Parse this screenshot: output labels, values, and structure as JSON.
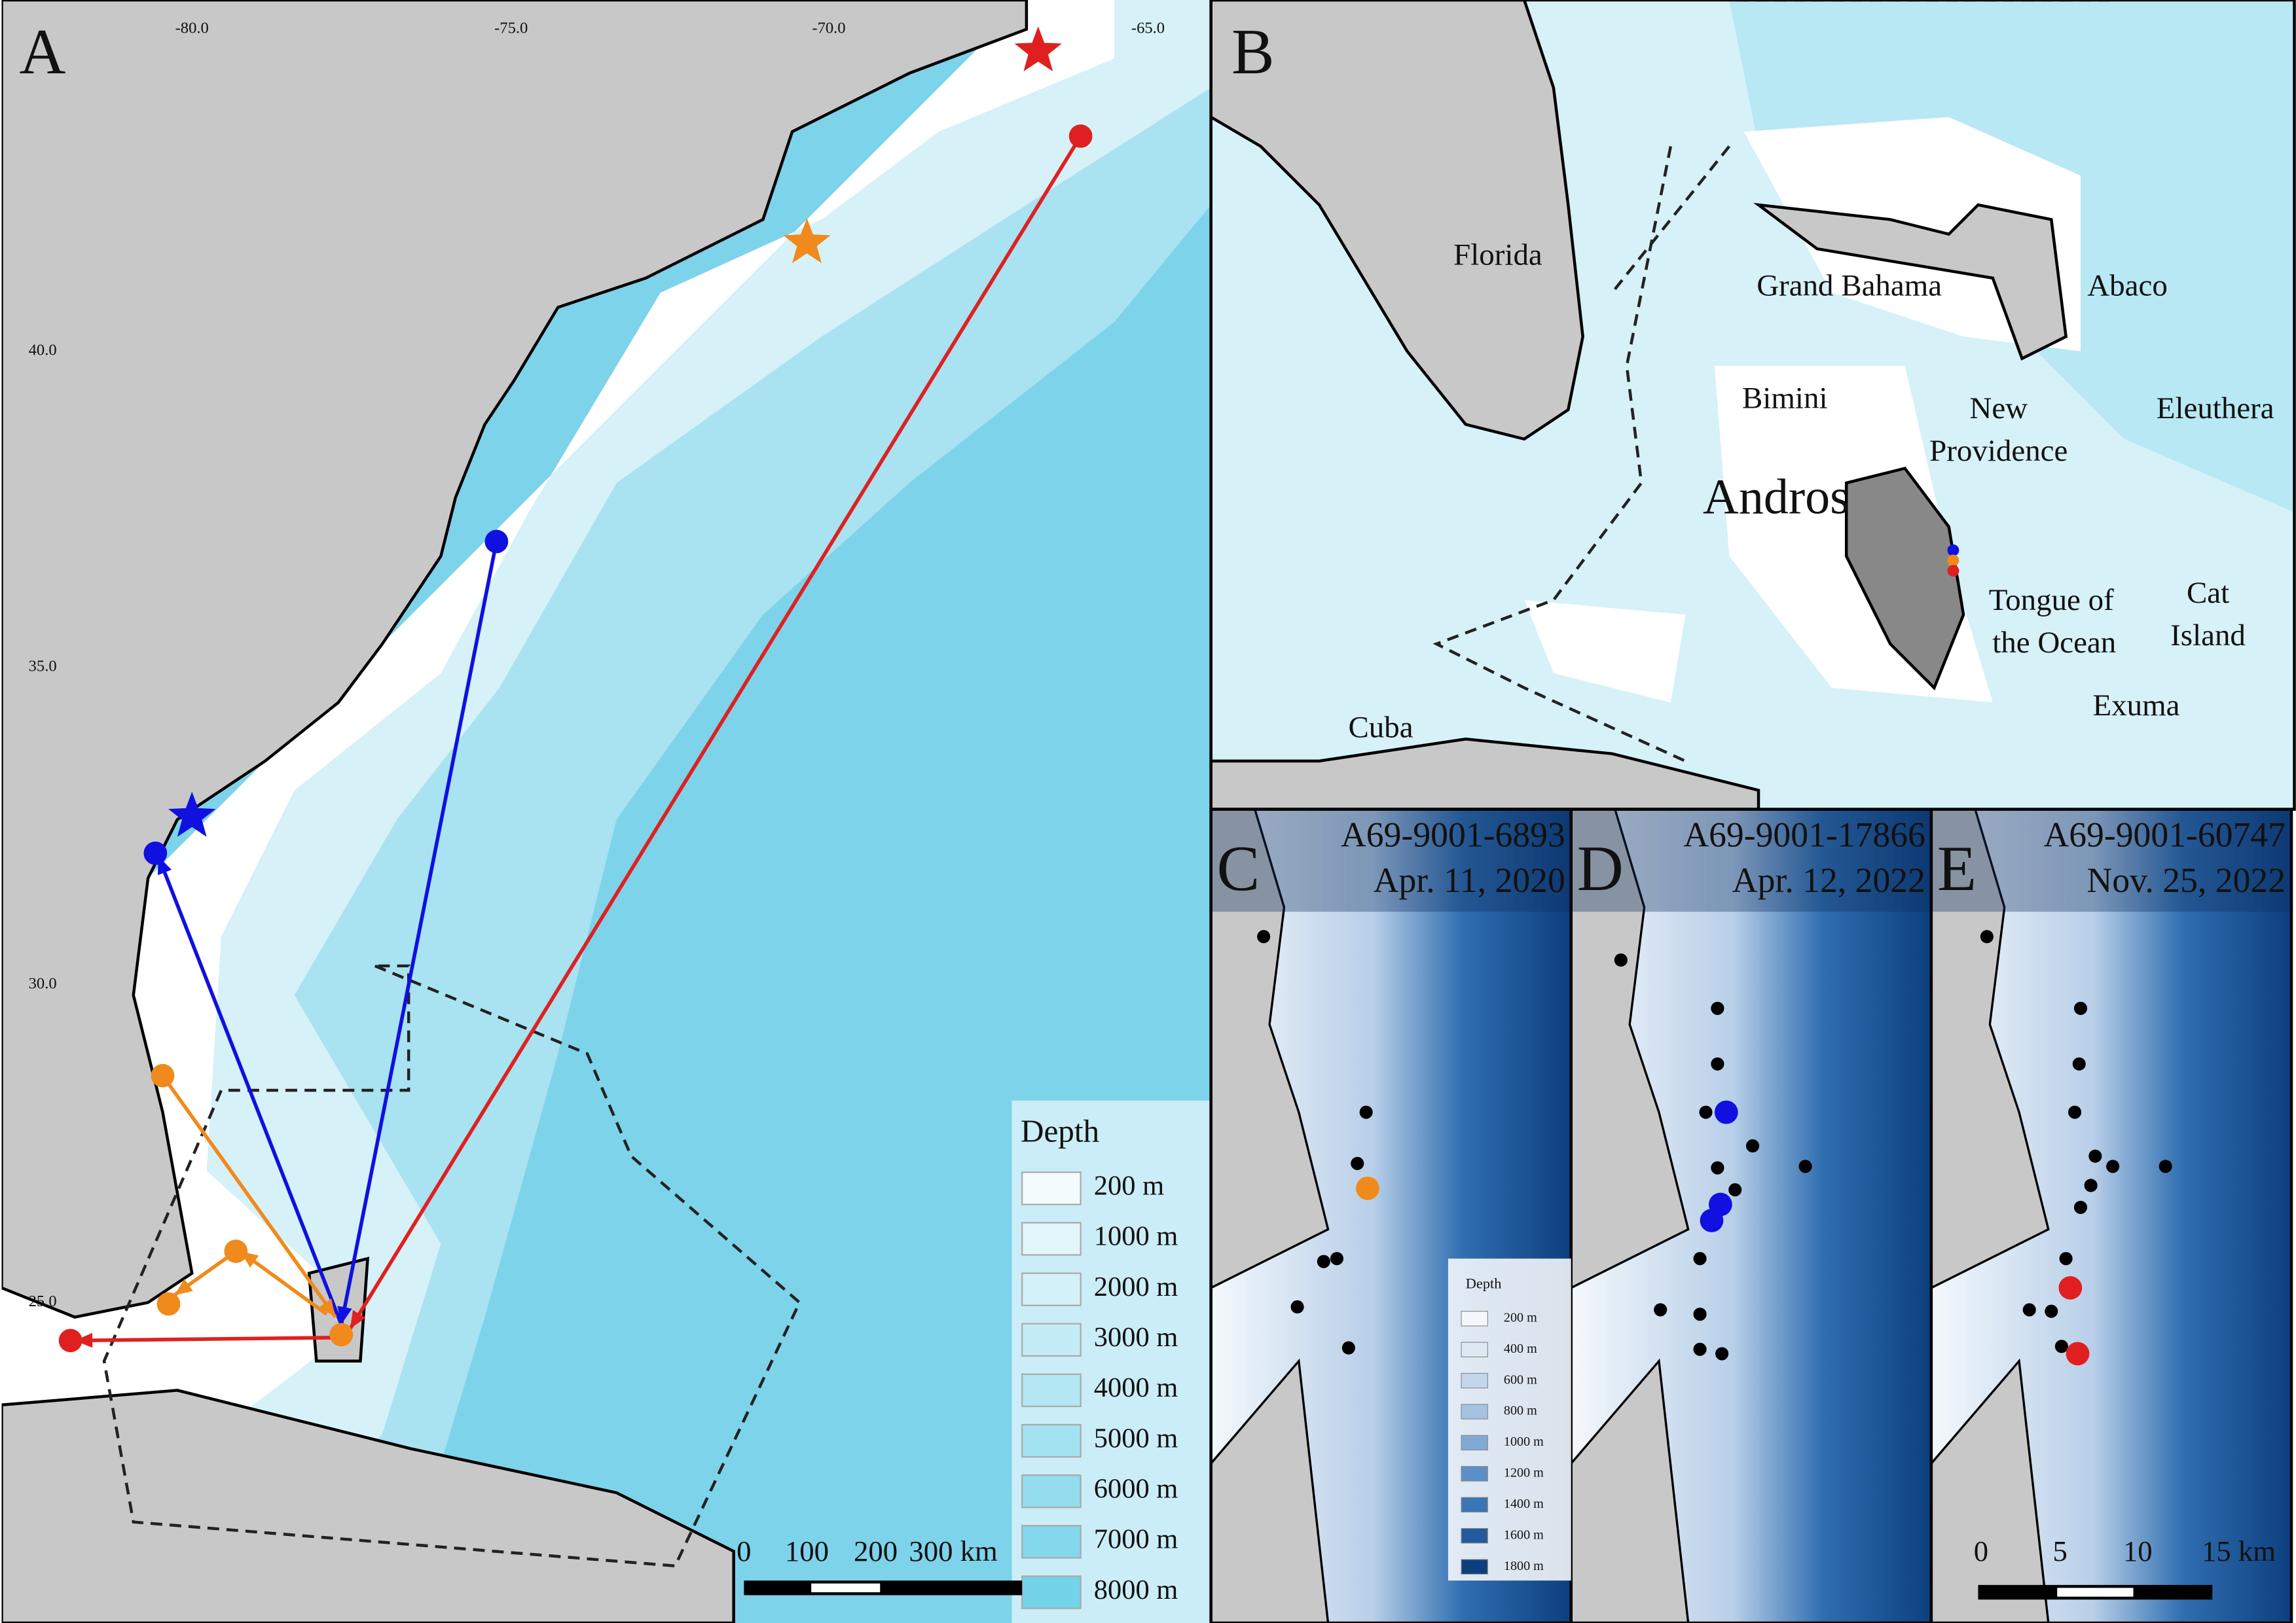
{
  "panel_a": {
    "label": "A",
    "lon_ticks": [
      "-80.0",
      "-75.0",
      "-70.0",
      "-65.0"
    ],
    "lat_ticks": [
      "40.0",
      "35.0",
      "30.0",
      "25.0"
    ],
    "legend_title": "Depth",
    "legend_items": [
      "200 m",
      "1000 m",
      "2000 m",
      "3000 m",
      "4000 m",
      "5000 m",
      "6000 m",
      "7000 m",
      "8000 m"
    ],
    "scale_labels": [
      "0",
      "100",
      "200",
      "300 km"
    ]
  },
  "panel_b": {
    "label": "B",
    "places": [
      "Florida",
      "Grand Bahama",
      "Abaco",
      "Bimini",
      "New",
      "Providence",
      "Eleuthera",
      "Andros",
      "Tongue of",
      "the Ocean",
      "Cat",
      "Island",
      "Exuma",
      "Cuba"
    ]
  },
  "panels_cde": [
    {
      "label": "C",
      "tag": "A69-9001-6893",
      "date": "Apr. 11, 2020"
    },
    {
      "label": "D",
      "tag": "A69-9001-17866",
      "date": "Apr. 12, 2022"
    },
    {
      "label": "E",
      "tag": "A69-9001-60747",
      "date": "Nov. 25, 2022"
    }
  ],
  "inset_legend": {
    "title": "Depth",
    "items": [
      "200 m",
      "400 m",
      "600 m",
      "800 m",
      "1000 m",
      "1200 m",
      "1400 m",
      "1600 m",
      "1800 m"
    ]
  },
  "inset_scale_labels": [
    "0",
    "5",
    "10",
    "15 km"
  ]
}
